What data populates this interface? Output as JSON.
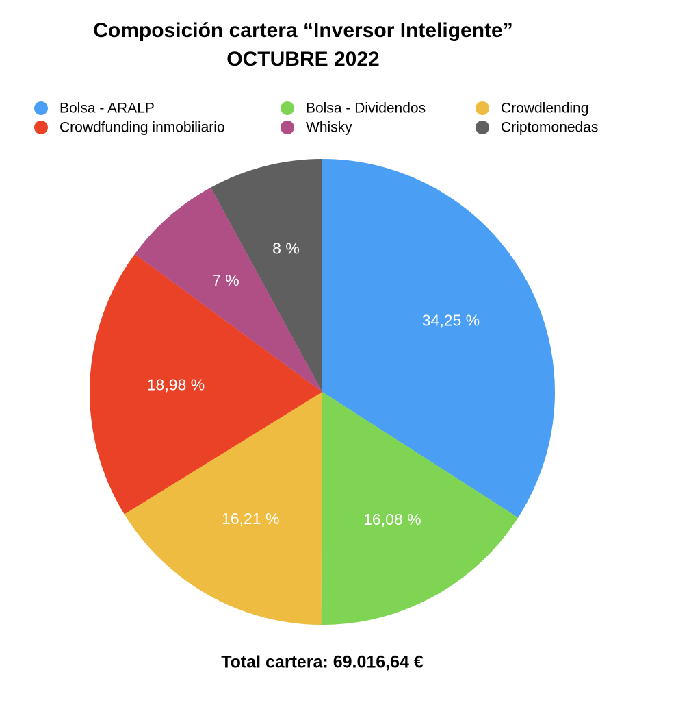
{
  "chart_data": {
    "type": "pie",
    "title": "Composición cartera “Inversor Inteligente”",
    "subtitle": "OCTUBRE 2022",
    "categories": [
      "Bolsa - ARALP",
      "Bolsa - Dividendos",
      "Crowdlending",
      "Crowdfunding inmobiliario",
      "Whisky",
      "Criptomonedas"
    ],
    "values": [
      34.25,
      16.08,
      16.21,
      18.98,
      7,
      8
    ],
    "value_labels": [
      "34,25 %",
      "16,08 %",
      "16,21 %",
      "18,98 %",
      "7 %",
      "8 %"
    ],
    "colors": [
      "#4a9ff5",
      "#80d454",
      "#eebc40",
      "#e94227",
      "#b04f85",
      "#5f5f5f"
    ],
    "annotation": "Total cartera: 69.016,64 €"
  }
}
